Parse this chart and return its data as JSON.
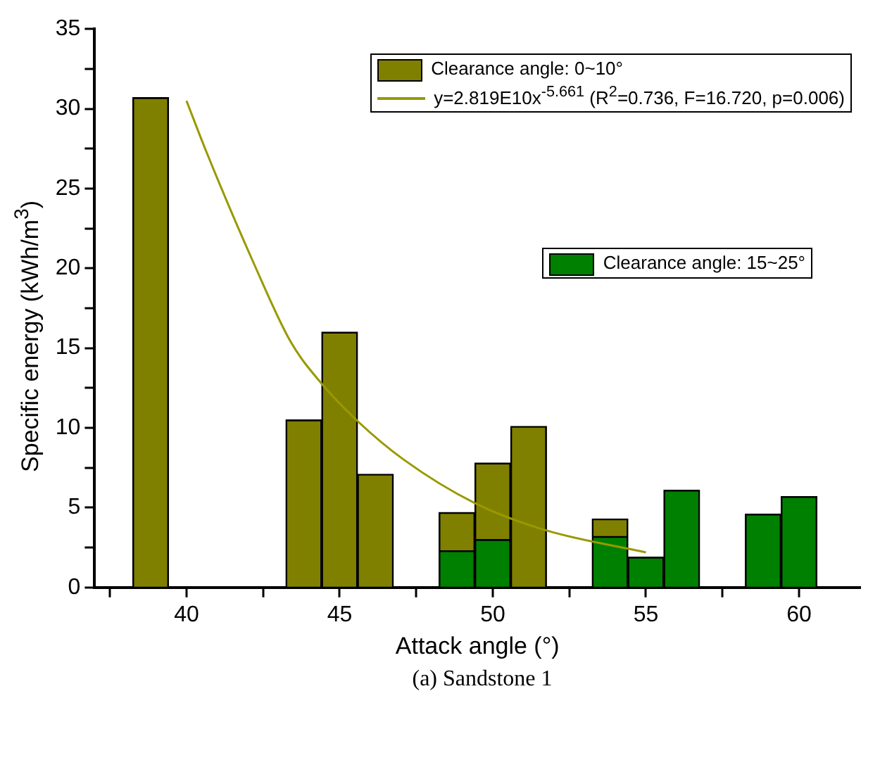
{
  "chart_data": {
    "type": "bar",
    "stacked": true,
    "xlabel": "Attack angle (°)",
    "ylabel": "Specific energy (kWh/m$^{3}$)",
    "xlim": [
      37,
      62
    ],
    "xticks": [
      {
        "value": 37.5,
        "label": null
      },
      40,
      {
        "value": 42.5,
        "label": null
      },
      45,
      {
        "value": 47.5,
        "label": null
      },
      50,
      {
        "value": 52.5,
        "label": null
      },
      55,
      {
        "value": 57.5,
        "label": null
      },
      60
    ],
    "ylim": [
      0,
      35
    ],
    "yticks": [
      0,
      {
        "value": 2.5,
        "label": null
      },
      5,
      {
        "value": 7.5,
        "label": null
      },
      10,
      {
        "value": 12.5,
        "label": null
      },
      15,
      {
        "value": 17.5,
        "label": null
      },
      20,
      {
        "value": 22.5,
        "label": null
      },
      25,
      {
        "value": 27.5,
        "label": null
      },
      30,
      {
        "value": 32.5,
        "label": null
      },
      35
    ],
    "grid": false,
    "legend": "top right",
    "x": [
      38.83,
      43.83,
      45,
      46.17,
      48.83,
      50,
      51.17,
      53.83,
      55,
      56.17,
      58.83,
      60
    ],
    "series": [
      {
        "name": "Clearance angle: 15~25°",
        "color": "#008000",
        "values": [
          null,
          null,
          null,
          null,
          2.3,
          3.0,
          null,
          3.2,
          1.9,
          6.1,
          4.6,
          5.7
        ]
      },
      {
        "name": "Clearance angle: 0~10°",
        "color": "#808000",
        "values": [
          30.7,
          10.5,
          16.0,
          7.1,
          2.4,
          4.8,
          10.1,
          1.1,
          null,
          null,
          null,
          null
        ]
      },
      {
        "name": "y=2.819E10x$^{-5.661}$ (R$^{2}$=0.736, F=16.720, p=0.006)",
        "type": "line",
        "color": "#999900",
        "x": [
          40,
          40.65,
          42.2,
          43.4,
          44.4,
          45.6,
          47.1,
          49.4,
          51.7,
          55
        ],
        "values": [
          30.5,
          27.3,
          20.3,
          15.4,
          12.8,
          10.4,
          8.0,
          5.3,
          3.6,
          2.2
        ]
      }
    ],
    "annotations": [
      "(a) Sandstone 1"
    ]
  }
}
